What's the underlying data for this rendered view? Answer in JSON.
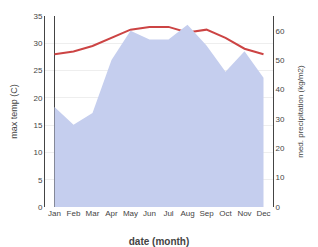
{
  "chart_data": {
    "type": "line",
    "xlabel": "date (month)",
    "ylabel": "max temp (C)",
    "y2label": "med. precipitation (kg/m2)",
    "categories": [
      "Jan",
      "Feb",
      "Mar",
      "Apr",
      "May",
      "Jun",
      "Jul",
      "Aug",
      "Sep",
      "Oct",
      "Nov",
      "Dec"
    ],
    "series": [
      {
        "type": "area",
        "axis": "y2",
        "color": "#c5ceee",
        "values": [
          34,
          28,
          32,
          50,
          60,
          57,
          57,
          62,
          55,
          46,
          53,
          44
        ]
      },
      {
        "type": "line",
        "color": "#cc4444",
        "values": [
          28,
          28.5,
          29.5,
          31,
          32.5,
          33,
          33,
          32,
          32.5,
          31,
          29,
          28
        ]
      }
    ],
    "ylim": [
      0,
      35
    ],
    "yticks": [
      0,
      5,
      10,
      15,
      20,
      25,
      30,
      35
    ],
    "y2lim": [
      0,
      65
    ],
    "y2ticks": [
      0,
      10,
      20,
      30,
      40,
      50,
      60
    ],
    "grid": true
  }
}
